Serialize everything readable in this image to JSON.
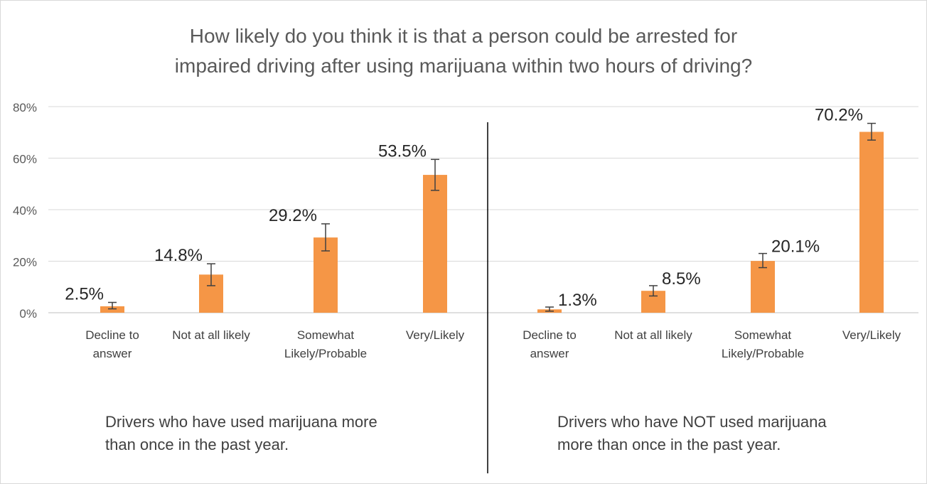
{
  "chart_data": {
    "type": "bar",
    "title": "How likely do you think it is that a person could be arrested for\nimpaired driving after using marijuana within two hours of driving?",
    "ylim": [
      0,
      80
    ],
    "y_ticks": [
      "0%",
      "20%",
      "40%",
      "60%",
      "80%"
    ],
    "y_tick_values": [
      0,
      20,
      40,
      60,
      80
    ],
    "grid": true,
    "bar_color": "#f59646",
    "categories": [
      "Decline to\nanswer",
      "Not at all likely",
      "Somewhat\nLikely/Probable",
      "Very/Likely"
    ],
    "panels": [
      {
        "caption": "Drivers who have used marijuana more\nthan once in the past year.",
        "values": [
          2.5,
          14.8,
          29.2,
          53.5
        ],
        "labels": [
          "2.5%",
          "14.8%",
          "29.2%",
          "53.5%"
        ],
        "error_low": [
          1.5,
          10.5,
          24.0,
          47.5
        ],
        "error_high": [
          4.0,
          19.0,
          34.5,
          59.5
        ]
      },
      {
        "caption": "Drivers who have NOT used marijuana\nmore than once in the past year.",
        "values": [
          1.3,
          8.5,
          20.1,
          70.2
        ],
        "labels": [
          "1.3%",
          "8.5%",
          "20.1%",
          "70.2%"
        ],
        "error_low": [
          0.6,
          6.5,
          17.5,
          67.0
        ],
        "error_high": [
          2.2,
          10.5,
          23.0,
          73.5
        ]
      }
    ]
  }
}
